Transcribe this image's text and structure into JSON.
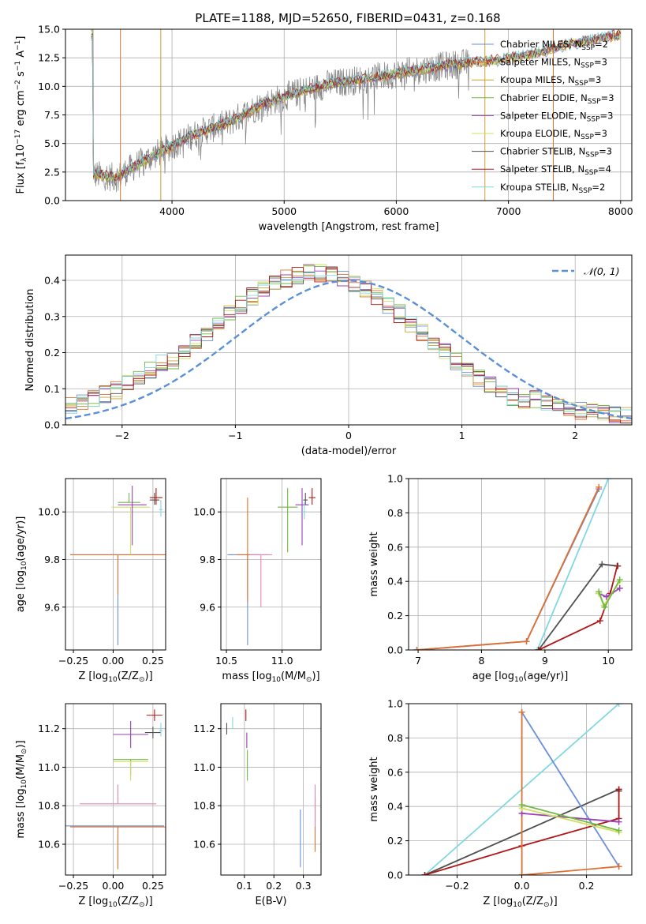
{
  "figure": {
    "title": "PLATE=1188, MJD=52650, FIBERID=0431, z=0.168"
  },
  "palette": {
    "Chabrier MILES": "#6a8fdc",
    "Salpeter MILES": "#e07030",
    "Kroupa MILES": "#c8a030",
    "Chabrier ELODIE": "#70b840",
    "Salpeter ELODIE": "#9a40b8",
    "Kroupa ELODIE": "#d0e060",
    "Chabrier STELIB": "#505050",
    "Salpeter STELIB": "#b01818",
    "Kroupa STELIB": "#80d8e0",
    "data": "#808080",
    "gauss": "#5b8fd8",
    "pink": "#e088b0"
  },
  "legend1": [
    "Chabrier MILES, N|SSP|=2",
    "Salpeter MILES, N|SSP|=3",
    "Kroupa MILES, N|SSP|=3",
    "Chabrier ELODIE, N|SSP|=3",
    "Salpeter ELODIE, N|SSP|=3",
    "Kroupa ELODIE, N|SSP|=3",
    "Chabrier STELIB, N|SSP|=3",
    "Salpeter STELIB, N|SSP|=4",
    "Kroupa STELIB, N|SSP|=2"
  ],
  "legend2": "𝒩(0, 1)",
  "chart_data": [
    {
      "type": "line",
      "id": "spectrum",
      "xlabel": "wavelength [Angstrom, rest frame]",
      "ylabel": "Flux [f|λ|10^−17^ erg cm^−2^ s^−1^ A^−1^]",
      "xlim": [
        3050,
        8100
      ],
      "ylim": [
        0,
        15
      ],
      "xticks": [
        4000,
        5000,
        6000,
        7000,
        8000
      ],
      "yticks": [
        0.0,
        2.5,
        5.0,
        7.5,
        10.0,
        12.5,
        15.0
      ],
      "ytick_labels": [
        "0.0",
        "2.5",
        "5.0",
        "7.5",
        "10.0",
        "12.5",
        "15.0"
      ],
      "continuum": [
        [
          3300,
          2.3
        ],
        [
          3500,
          2.0
        ],
        [
          3700,
          3.2
        ],
        [
          3900,
          4.3
        ],
        [
          4200,
          5.8
        ],
        [
          4500,
          6.8
        ],
        [
          4800,
          8.4
        ],
        [
          5100,
          9.4
        ],
        [
          5400,
          10.2
        ],
        [
          5700,
          10.6
        ],
        [
          6000,
          11.1
        ],
        [
          6300,
          11.6
        ],
        [
          6600,
          12.0
        ],
        [
          6900,
          12.3
        ],
        [
          7200,
          12.8
        ],
        [
          7500,
          13.6
        ],
        [
          7800,
          14.2
        ],
        [
          8000,
          14.5
        ]
      ],
      "data_x_range": [
        3280,
        6650
      ]
    },
    {
      "type": "histogram",
      "id": "residuals",
      "xlabel": "(data-model)/error",
      "ylabel": "Normed distribution",
      "xlim": [
        -2.5,
        2.5
      ],
      "ylim": [
        0,
        0.47
      ],
      "xticks": [
        -2,
        -1,
        0,
        1,
        2
      ],
      "xtick_labels": [
        "−2",
        "−1",
        "0",
        "1",
        "2"
      ],
      "yticks": [
        0.0,
        0.1,
        0.2,
        0.3,
        0.4
      ],
      "ytick_labels": [
        "0.0",
        "0.1",
        "0.2",
        "0.3",
        "0.4"
      ],
      "bin_width": 0.1
    },
    {
      "type": "errorbar",
      "id": "age-vs-Z",
      "xlabel": "Z [log|10|(Z/Z|⊙|)]",
      "ylabel": "age  [log|10|(age/yr)]",
      "xlim": [
        -0.3,
        0.33
      ],
      "ylim": [
        9.42,
        10.14
      ],
      "xticks": [
        -0.25,
        0.0,
        0.25
      ],
      "xtick_labels": [
        "−0.25",
        "0.00",
        "0.25"
      ],
      "yticks": [
        9.6,
        9.8,
        10.0
      ],
      "ytick_labels": [
        "9.6",
        "9.8",
        "10.0"
      ],
      "points": [
        {
          "x": 0.03,
          "y": 9.82,
          "xerr": 0.29,
          "yerr": [
            0.38,
            0.0
          ],
          "model": "Chabrier MILES"
        },
        {
          "x": 0.03,
          "y": 9.82,
          "xerr": 0.3,
          "yerr": [
            0.17,
            0.0
          ],
          "model": "Salpeter MILES"
        },
        {
          "x": 0.11,
          "y": 10.02,
          "xerr": 0.12,
          "yerr": [
            0.2,
            0.0
          ],
          "model": "Kroupa ELODIE"
        },
        {
          "x": 0.1,
          "y": 10.04,
          "xerr": 0.07,
          "yerr": [
            0.0,
            0.04
          ],
          "model": "Chabrier ELODIE"
        },
        {
          "x": 0.12,
          "y": 10.03,
          "xerr": 0.09,
          "yerr": [
            0.17,
            0.08
          ],
          "model": "Salpeter ELODIE"
        },
        {
          "x": 0.26,
          "y": 10.05,
          "xerr": 0.03,
          "yerr": [
            0.02,
            0.03
          ],
          "model": "Chabrier STELIB"
        },
        {
          "x": 0.27,
          "y": 10.06,
          "xerr": 0.04,
          "yerr": [
            0.03,
            0.04
          ],
          "model": "Salpeter STELIB"
        },
        {
          "x": 0.3,
          "y": 10.01,
          "xerr": 0.01,
          "yerr": [
            0.03,
            0.04
          ],
          "model": "Kroupa STELIB"
        }
      ]
    },
    {
      "type": "errorbar",
      "id": "age-vs-mass",
      "xlabel": "mass [log|10|(M/M|⊙|)]",
      "ylabel": "",
      "xlim": [
        10.45,
        11.35
      ],
      "ylim": [
        9.42,
        10.14
      ],
      "xticks": [
        10.5,
        11.0
      ],
      "xtick_labels": [
        "10.5",
        "11.0"
      ],
      "yticks": [
        9.6,
        9.8,
        10.0
      ],
      "ytick_labels": [
        "9.6",
        "9.8",
        "10.0"
      ],
      "points": [
        {
          "x": 10.69,
          "y": 9.82,
          "xerr": 0.18,
          "yerr": [
            0.38,
            0.0
          ],
          "model": "Chabrier MILES"
        },
        {
          "x": 10.69,
          "y": 9.82,
          "xerr": 0.1,
          "yerr": [
            0.2,
            0.24
          ],
          "model": "Salpeter MILES"
        },
        {
          "x": 10.81,
          "y": 9.82,
          "xerr": 0.1,
          "yerr": [
            0.22,
            0.0
          ],
          "color": "pink"
        },
        {
          "x": 11.05,
          "y": 10.02,
          "xerr": 0.09,
          "yerr": [
            0.19,
            0.08
          ],
          "model": "Chabrier ELODIE"
        },
        {
          "x": 11.18,
          "y": 10.03,
          "xerr": 0.06,
          "yerr": [
            0.17,
            0.07
          ],
          "model": "Salpeter ELODIE"
        },
        {
          "x": 11.21,
          "y": 10.05,
          "xerr": 0.02,
          "yerr": [
            0.02,
            0.03
          ],
          "model": "Chabrier STELIB"
        },
        {
          "x": 11.27,
          "y": 10.06,
          "xerr": 0.03,
          "yerr": [
            0.03,
            0.04
          ],
          "model": "Salpeter STELIB"
        },
        {
          "x": 11.2,
          "y": 10.0,
          "xerr": 0.02,
          "yerr": [
            0.03,
            0.04
          ],
          "model": "Kroupa STELIB"
        }
      ]
    },
    {
      "type": "line",
      "id": "weight-vs-age",
      "xlabel": "age  [log|10|(age/yr)]",
      "ylabel": "mass weight",
      "xlim": [
        6.85,
        10.37
      ],
      "ylim": [
        0,
        1.0
      ],
      "xticks": [
        7,
        8,
        9,
        10
      ],
      "xtick_labels": [
        "7",
        "8",
        "9",
        "10"
      ],
      "yticks": [
        0.0,
        0.2,
        0.4,
        0.6,
        0.8,
        1.0
      ],
      "ytick_labels": [
        "0.0",
        "0.2",
        "0.4",
        "0.6",
        "0.8",
        "1.0"
      ],
      "series": [
        {
          "model": "Kroupa STELIB",
          "points": [
            [
              8.88,
              0.0
            ],
            [
              10.0,
              1.0
            ]
          ]
        },
        {
          "model": "Chabrier MILES",
          "points": [
            [
              6.98,
              0.0
            ],
            [
              8.71,
              0.05
            ],
            [
              9.85,
              0.94
            ]
          ]
        },
        {
          "model": "Salpeter MILES",
          "points": [
            [
              6.98,
              0.0
            ],
            [
              8.71,
              0.05
            ],
            [
              9.85,
              0.95
            ]
          ]
        },
        {
          "model": "Chabrier STELIB",
          "points": [
            [
              8.9,
              0.0
            ],
            [
              9.9,
              0.5
            ],
            [
              10.15,
              0.49
            ]
          ]
        },
        {
          "model": "Salpeter STELIB",
          "points": [
            [
              8.9,
              0.0
            ],
            [
              9.87,
              0.17
            ],
            [
              10.03,
              0.33
            ],
            [
              10.14,
              0.49
            ]
          ]
        },
        {
          "model": "Salpeter ELODIE",
          "points": [
            [
              9.85,
              0.33
            ],
            [
              9.97,
              0.31
            ],
            [
              10.18,
              0.36
            ]
          ]
        },
        {
          "model": "Kroupa ELODIE",
          "points": [
            [
              9.85,
              0.33
            ],
            [
              9.93,
              0.26
            ],
            [
              10.18,
              0.4
            ]
          ]
        },
        {
          "model": "Chabrier ELODIE",
          "points": [
            [
              9.85,
              0.34
            ],
            [
              9.94,
              0.25
            ],
            [
              10.18,
              0.41
            ]
          ]
        }
      ]
    },
    {
      "type": "errorbar",
      "id": "mass-vs-Z",
      "xlabel": "Z [log|10|(Z/Z|⊙|)]",
      "ylabel": "mass [log|10|(M/M|⊙|)]",
      "xlim": [
        -0.3,
        0.33
      ],
      "ylim": [
        10.44,
        11.33
      ],
      "xticks": [
        -0.25,
        0.0,
        0.25
      ],
      "xtick_labels": [
        "−0.25",
        "0.00",
        "0.25"
      ],
      "yticks": [
        10.6,
        10.8,
        11.0,
        11.2
      ],
      "ytick_labels": [
        "10.6",
        "10.8",
        "11.0",
        "11.2"
      ],
      "points": [
        {
          "x": 0.03,
          "y": 10.69,
          "xerr": 0.3,
          "yerr": [
            0.22,
            0.0
          ],
          "model": "Salpeter MILES"
        },
        {
          "x": 0.0,
          "y": 10.695,
          "xerr": 0.32,
          "yerr": [
            0.0,
            0.0
          ],
          "model": "Chabrier MILES"
        },
        {
          "x": 0.03,
          "y": 10.81,
          "xerr": 0.24,
          "yerr": [
            0.0,
            0.1
          ],
          "color": "pink"
        },
        {
          "x": 0.11,
          "y": 11.04,
          "xerr": 0.11,
          "yerr": [
            0.08,
            0.0
          ],
          "model": "Chabrier ELODIE"
        },
        {
          "x": 0.11,
          "y": 11.03,
          "xerr": 0.11,
          "yerr": [
            0.1,
            0.0
          ],
          "model": "Kroupa ELODIE"
        },
        {
          "x": 0.11,
          "y": 11.17,
          "xerr": 0.11,
          "yerr": [
            0.07,
            0.07
          ],
          "model": "Salpeter ELODIE"
        },
        {
          "x": 0.25,
          "y": 11.18,
          "xerr": 0.05,
          "yerr": [
            0.03,
            0.03
          ],
          "model": "Chabrier STELIB"
        },
        {
          "x": 0.26,
          "y": 11.27,
          "xerr": 0.05,
          "yerr": [
            0.03,
            0.03
          ],
          "model": "Salpeter STELIB"
        },
        {
          "x": 0.3,
          "y": 11.19,
          "xerr": 0.01,
          "yerr": [
            0.03,
            0.04
          ],
          "model": "Kroupa STELIB"
        }
      ]
    },
    {
      "type": "errorbar",
      "id": "mass-vs-EBV",
      "xlabel": "E(B-V)",
      "ylabel": "",
      "xlim": [
        0.02,
        0.36
      ],
      "ylim": [
        10.44,
        11.33
      ],
      "xticks": [
        0.1,
        0.2,
        0.3
      ],
      "xtick_labels": [
        "0.1",
        "0.2",
        "0.3"
      ],
      "yticks": [
        10.6,
        10.8,
        11.0,
        11.2
      ],
      "ytick_labels": [
        "10.6",
        "10.8",
        "11.0",
        "11.2"
      ],
      "points": [
        {
          "x": 0.04,
          "y": 11.2,
          "xerr": 0.0,
          "yerr": [
            0.03,
            0.03
          ],
          "model": "Chabrier STELIB"
        },
        {
          "x": 0.06,
          "y": 11.23,
          "xerr": 0.0,
          "yerr": [
            0.03,
            0.03
          ],
          "model": "Kroupa STELIB"
        },
        {
          "x": 0.105,
          "y": 11.27,
          "xerr": 0.0,
          "yerr": [
            0.03,
            0.03
          ],
          "model": "Salpeter STELIB"
        },
        {
          "x": 0.108,
          "y": 11.14,
          "xerr": 0.0,
          "yerr": [
            0.04,
            0.04
          ],
          "model": "Salpeter ELODIE"
        },
        {
          "x": 0.11,
          "y": 11.01,
          "xerr": 0.0,
          "yerr": [
            0.08,
            0.08
          ],
          "model": "Chabrier ELODIE"
        },
        {
          "x": 0.29,
          "y": 10.63,
          "xerr": 0.0,
          "yerr": [
            0.15,
            0.15
          ],
          "model": "Chabrier MILES"
        },
        {
          "x": 0.34,
          "y": 10.7,
          "xerr": 0.0,
          "yerr": [
            0.14,
            0.14
          ],
          "model": "Salpeter MILES"
        },
        {
          "x": 0.34,
          "y": 10.8,
          "xerr": 0.0,
          "yerr": [
            0.11,
            0.11
          ],
          "color": "pink"
        }
      ]
    },
    {
      "type": "line",
      "id": "weight-vs-Z",
      "xlabel": "Z [log|10|(Z/Z|⊙|)]",
      "ylabel": "mass weight",
      "xlim": [
        -0.35,
        0.34
      ],
      "ylim": [
        0,
        1.0
      ],
      "xticks": [
        -0.2,
        0.0,
        0.2
      ],
      "xtick_labels": [
        "−0.2",
        "0.0",
        "0.2"
      ],
      "yticks": [
        0.0,
        0.2,
        0.4,
        0.6,
        0.8,
        1.0
      ],
      "ytick_labels": [
        "0.0",
        "0.2",
        "0.4",
        "0.6",
        "0.8",
        "1.0"
      ],
      "series": [
        {
          "model": "Kroupa STELIB",
          "points": [
            [
              -0.3,
              0.0
            ],
            [
              0.3,
              1.0
            ]
          ]
        },
        {
          "model": "Chabrier STELIB",
          "points": [
            [
              -0.3,
              0.0
            ],
            [
              0.3,
              0.5
            ],
            [
              0.3,
              0.49
            ]
          ]
        },
        {
          "model": "Salpeter STELIB",
          "points": [
            [
              -0.3,
              0.0
            ],
            [
              0.0,
              0.17
            ],
            [
              0.3,
              0.33
            ],
            [
              0.3,
              0.5
            ]
          ]
        },
        {
          "model": "Chabrier MILES",
          "points": [
            [
              0.0,
              0.95
            ],
            [
              0.3,
              0.05
            ]
          ]
        },
        {
          "model": "Salpeter MILES",
          "points": [
            [
              0.0,
              0.95
            ],
            [
              0.0,
              0.0
            ],
            [
              0.3,
              0.05
            ]
          ]
        },
        {
          "model": "Salpeter ELODIE",
          "points": [
            [
              0.0,
              0.36
            ],
            [
              0.3,
              0.31
            ]
          ]
        },
        {
          "model": "Kroupa ELODIE",
          "points": [
            [
              0.0,
              0.39
            ],
            [
              0.3,
              0.25
            ]
          ]
        },
        {
          "model": "Chabrier ELODIE",
          "points": [
            [
              0.0,
              0.41
            ],
            [
              0.3,
              0.26
            ]
          ]
        }
      ]
    }
  ]
}
